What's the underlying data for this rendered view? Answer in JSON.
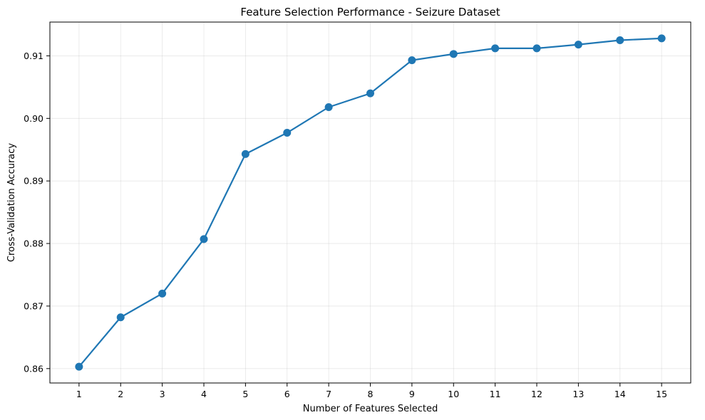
{
  "chart_data": {
    "type": "line",
    "title": "Feature Selection Performance - Seizure Dataset",
    "xlabel": "Number of Features Selected",
    "ylabel": "Cross-Validation Accuracy",
    "x": [
      1,
      2,
      3,
      4,
      5,
      6,
      7,
      8,
      9,
      10,
      11,
      12,
      13,
      14,
      15
    ],
    "series": [
      {
        "values": [
          0.8603,
          0.8682,
          0.872,
          0.8807,
          0.8943,
          0.8977,
          0.9018,
          0.904,
          0.9093,
          0.9103,
          0.9112,
          0.9112,
          0.9118,
          0.9125,
          0.9128
        ],
        "color": "#1f77b4"
      }
    ],
    "xticks": [
      "1",
      "2",
      "3",
      "4",
      "5",
      "6",
      "7",
      "8",
      "9",
      "10",
      "11",
      "12",
      "13",
      "14",
      "15"
    ],
    "yticks": [
      "0.86",
      "0.87",
      "0.88",
      "0.89",
      "0.90",
      "0.91"
    ],
    "ytick_values": [
      0.86,
      0.87,
      0.88,
      0.89,
      0.9,
      0.91
    ],
    "xlim": [
      0.3,
      15.7
    ],
    "ylim": [
      0.8577,
      0.9154
    ],
    "grid": true,
    "marker": "circle"
  }
}
